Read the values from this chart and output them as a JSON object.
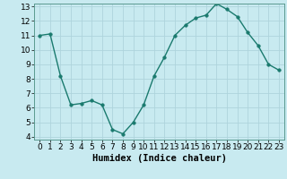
{
  "x": [
    0,
    1,
    2,
    3,
    4,
    5,
    6,
    7,
    8,
    9,
    10,
    11,
    12,
    13,
    14,
    15,
    16,
    17,
    18,
    19,
    20,
    21,
    22,
    23
  ],
  "y": [
    11.0,
    11.1,
    8.2,
    6.2,
    6.3,
    6.5,
    6.2,
    4.5,
    4.2,
    5.0,
    6.2,
    8.2,
    9.5,
    11.0,
    11.7,
    12.2,
    12.4,
    13.2,
    12.8,
    12.3,
    11.2,
    10.3,
    9.0,
    8.6
  ],
  "line_color": "#1a7a6e",
  "marker_color": "#1a7a6e",
  "bg_color": "#c8eaf0",
  "grid_color": "#aed4dc",
  "xlabel": "Humidex (Indice chaleur)",
  "xlim": [
    -0.5,
    23.5
  ],
  "ylim": [
    3.8,
    13.2
  ],
  "yticks": [
    4,
    5,
    6,
    7,
    8,
    9,
    10,
    11,
    12,
    13
  ],
  "xticks": [
    0,
    1,
    2,
    3,
    4,
    5,
    6,
    7,
    8,
    9,
    10,
    11,
    12,
    13,
    14,
    15,
    16,
    17,
    18,
    19,
    20,
    21,
    22,
    23
  ],
  "xlabel_fontsize": 7.5,
  "tick_fontsize": 6.5,
  "marker_size": 2.5,
  "line_width": 1.0
}
